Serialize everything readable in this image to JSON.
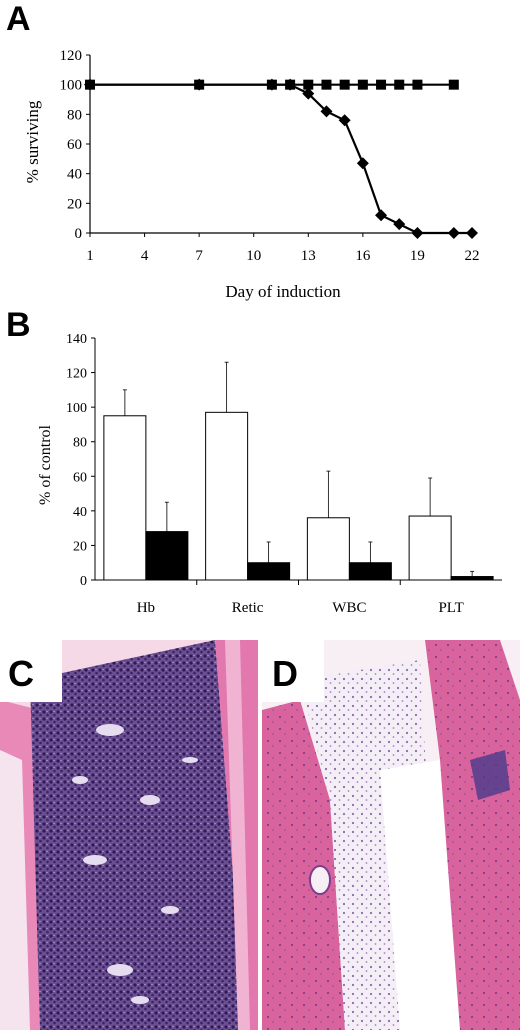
{
  "panels": {
    "a": "A",
    "b": "B",
    "c": "C",
    "d": "D"
  },
  "chart_data": [
    {
      "type": "line",
      "ylabel": "% surviving",
      "xlabel": "Day of induction",
      "ylim": [
        0,
        120
      ],
      "xlim": [
        1,
        22
      ],
      "yticks": [
        0,
        20,
        40,
        60,
        80,
        100,
        120
      ],
      "xticks": [
        1,
        4,
        7,
        10,
        13,
        16,
        19,
        22
      ],
      "grid": false,
      "series": [
        {
          "marker": "square",
          "x": [
            1,
            7,
            11,
            12,
            13,
            14,
            15,
            16,
            17,
            18,
            19,
            21
          ],
          "y": [
            100,
            100,
            100,
            100,
            100,
            100,
            100,
            100,
            100,
            100,
            100,
            100
          ]
        },
        {
          "marker": "diamond",
          "x": [
            1,
            7,
            11,
            12,
            13,
            14,
            15,
            16,
            17,
            18,
            19,
            21,
            22
          ],
          "y": [
            100,
            100,
            100,
            100,
            94,
            82,
            76,
            47,
            12,
            6,
            0,
            0,
            0
          ]
        }
      ]
    },
    {
      "type": "bar",
      "ylabel": "% of control",
      "ylim": [
        0,
        140
      ],
      "yticks": [
        0,
        20,
        40,
        60,
        80,
        100,
        120,
        140
      ],
      "categories": [
        "Hb",
        "Retic",
        "WBC",
        "PLT"
      ],
      "grid": false,
      "series": [
        {
          "color": "#ffffff",
          "values": [
            95,
            97,
            36,
            37
          ],
          "errors": [
            15,
            29,
            27,
            22
          ]
        },
        {
          "color": "#000000",
          "values": [
            28,
            10,
            10,
            2
          ],
          "errors": [
            17,
            12,
            12,
            3
          ]
        }
      ]
    }
  ]
}
